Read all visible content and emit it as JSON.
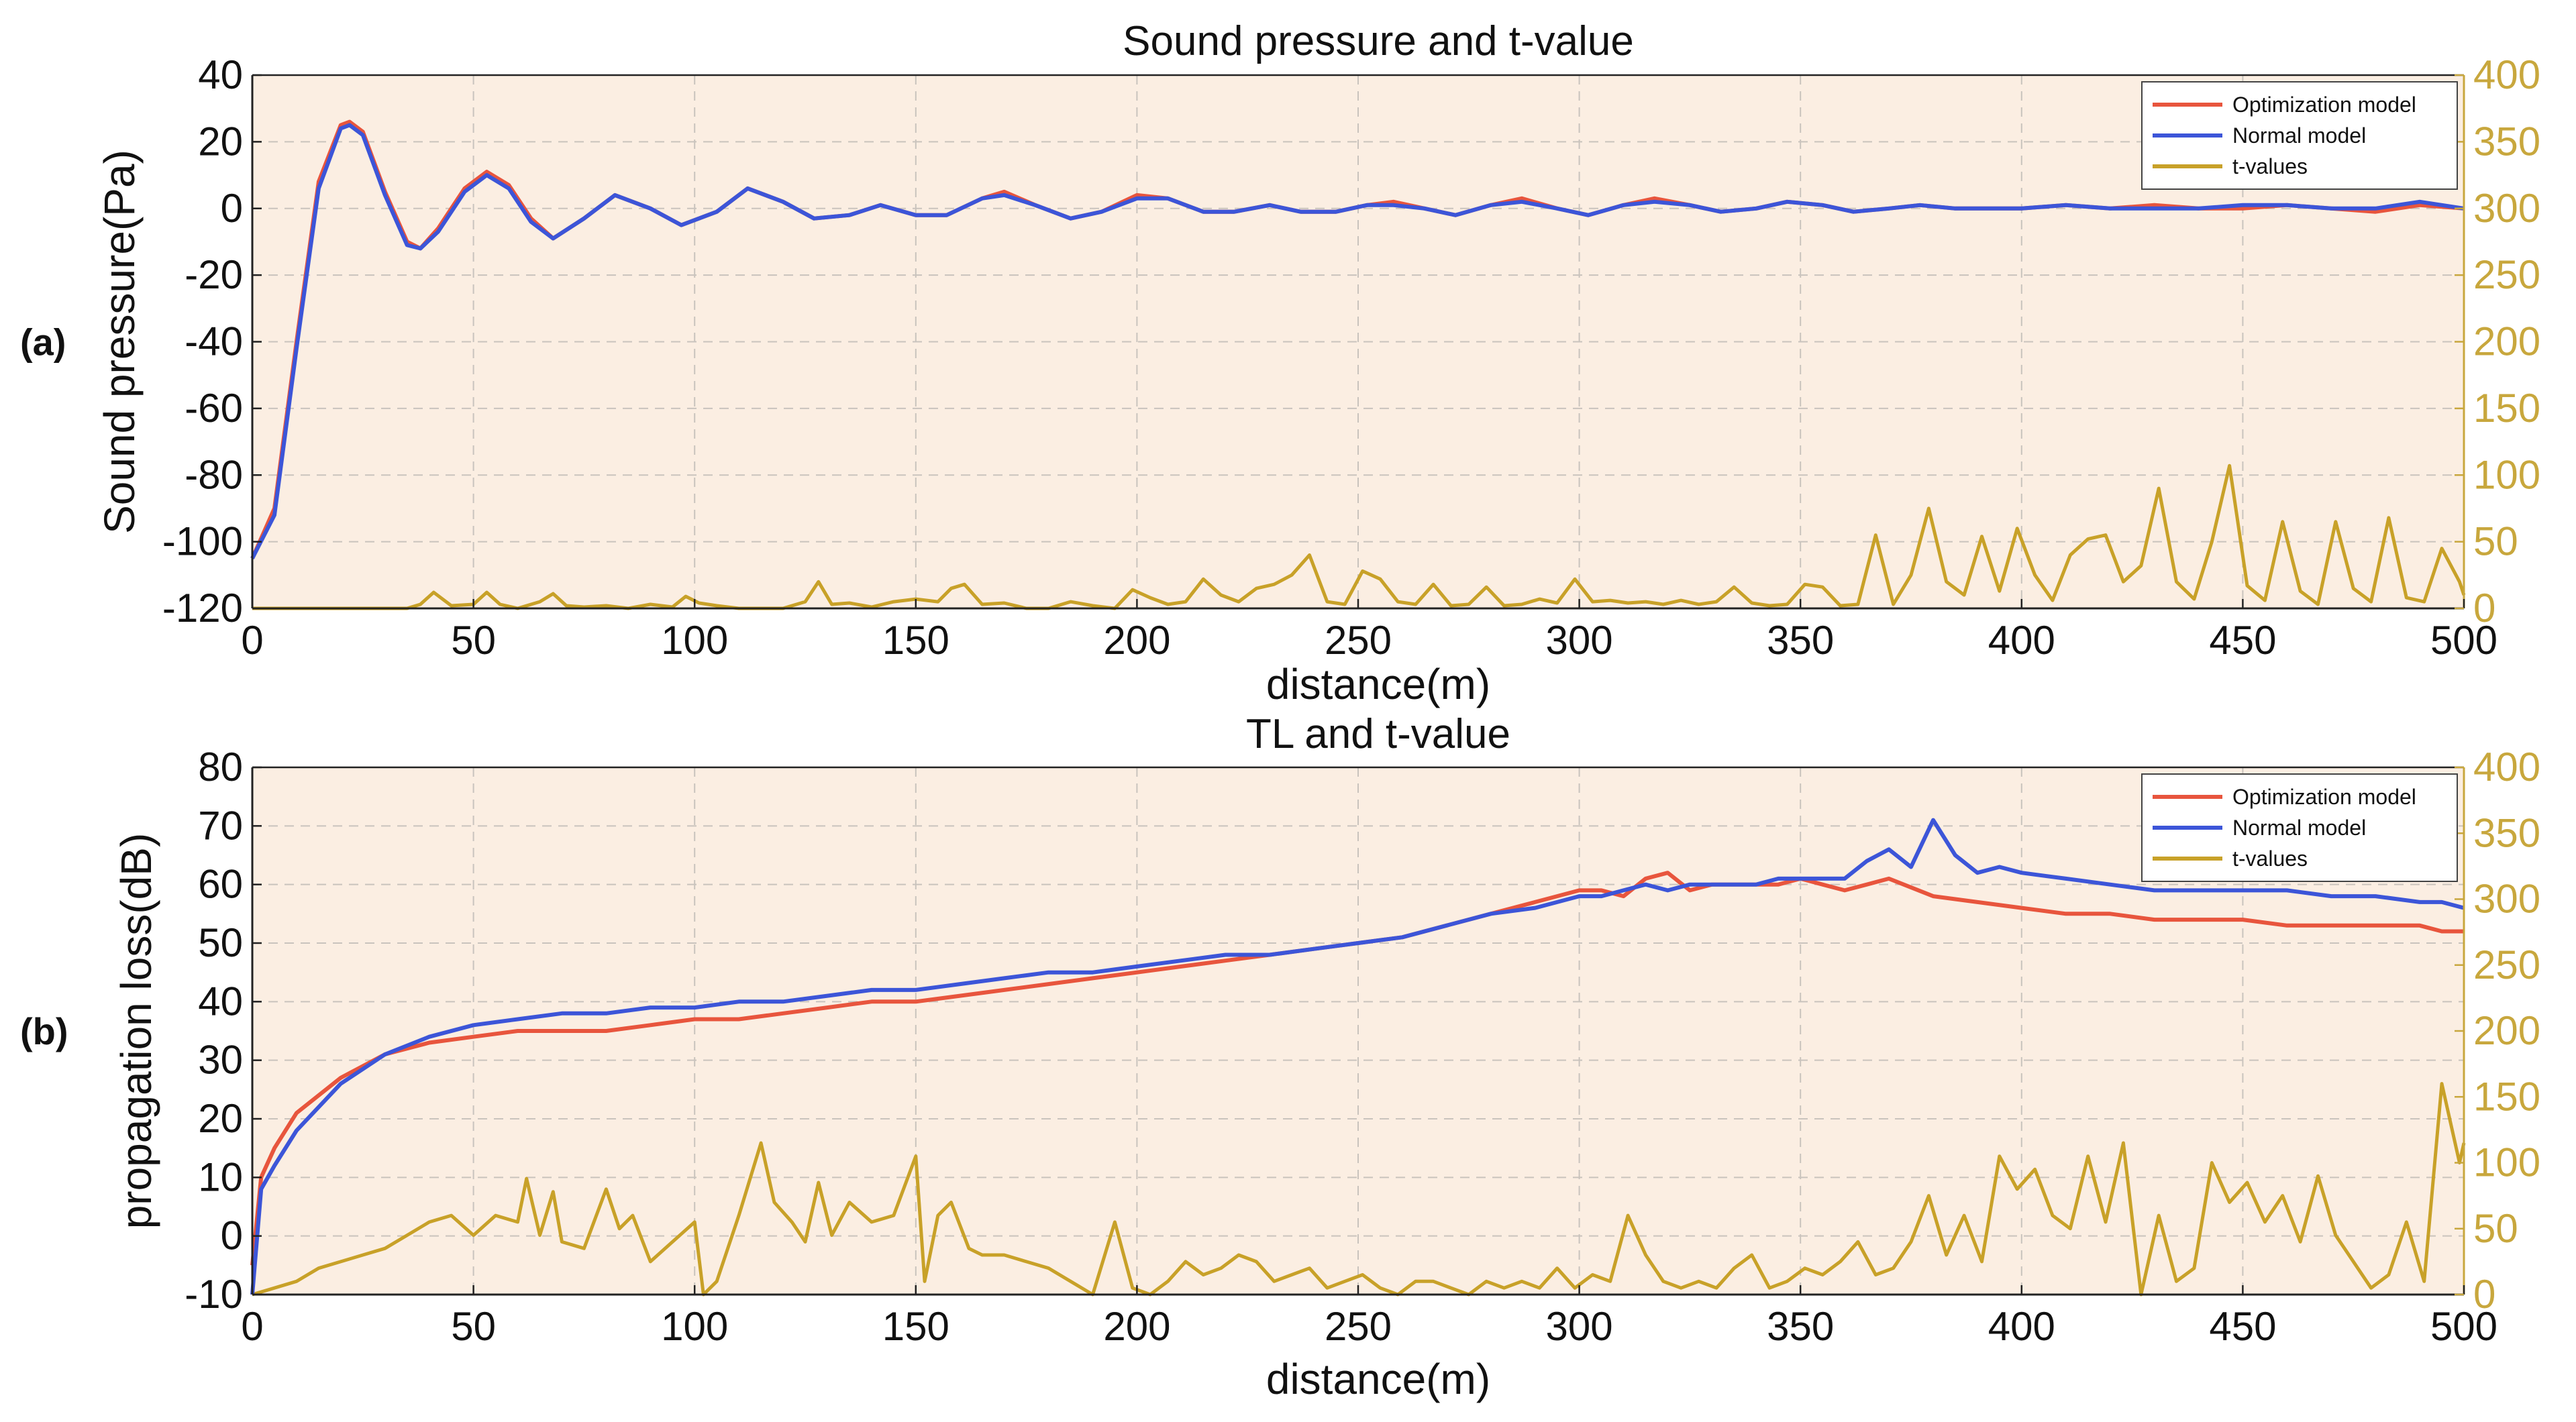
{
  "chart_data": [
    {
      "panel_label": "(a)",
      "type": "line",
      "title": "Sound pressure and t-value",
      "xlabel": "distance(m)",
      "ylabel": "Sound pressure(Pa)",
      "xlim": [
        0,
        500
      ],
      "ylim": [
        -120,
        40
      ],
      "y2lim": [
        0,
        400
      ],
      "xticks": [
        "0",
        "50",
        "100",
        "150",
        "200",
        "250",
        "300",
        "350",
        "400",
        "450",
        "500"
      ],
      "yticks": [
        "-120",
        "-100",
        "-80",
        "-60",
        "-40",
        "-20",
        "0",
        "20",
        "40"
      ],
      "y2ticks": [
        "0",
        "50",
        "100",
        "150",
        "200",
        "250",
        "300",
        "350",
        "400"
      ],
      "grid": true,
      "legend_position": "top-right",
      "colors": {
        "optimization": "#e8553d",
        "normal": "#3c55d8",
        "tvalues": "#c8a128",
        "background": "#fbeee2"
      },
      "series": [
        {
          "name": "Optimization model",
          "axis": "left",
          "color": "#e8553d",
          "x": [
            0,
            5,
            10,
            15,
            20,
            22,
            25,
            30,
            35,
            38,
            42,
            48,
            53,
            58,
            63,
            68,
            75,
            82,
            90,
            97,
            105,
            112,
            120,
            127,
            135,
            142,
            150,
            157,
            165,
            170,
            177,
            185,
            192,
            200,
            207,
            215,
            222,
            230,
            237,
            245,
            252,
            258,
            265,
            272,
            280,
            287,
            295,
            302,
            310,
            317,
            325,
            332,
            340,
            347,
            355,
            362,
            370,
            377,
            385,
            392,
            400,
            410,
            420,
            430,
            440,
            450,
            460,
            470,
            480,
            490,
            500
          ],
          "values": [
            -105,
            -90,
            -40,
            8,
            25,
            26,
            23,
            5,
            -10,
            -12,
            -6,
            6,
            11,
            7,
            -3,
            -9,
            -3,
            4,
            0,
            -5,
            -1,
            6,
            2,
            -3,
            -2,
            1,
            -2,
            -2,
            3,
            5,
            1,
            -3,
            -1,
            4,
            3,
            -1,
            -1,
            1,
            -1,
            -1,
            1,
            2,
            0,
            -2,
            1,
            3,
            0,
            -2,
            1,
            3,
            1,
            -1,
            0,
            2,
            1,
            -1,
            0,
            1,
            0,
            0,
            0,
            1,
            0,
            1,
            0,
            0,
            1,
            0,
            -1,
            1,
            0
          ]
        },
        {
          "name": "Normal model",
          "axis": "left",
          "color": "#3c55d8",
          "x": [
            0,
            5,
            10,
            15,
            20,
            22,
            25,
            30,
            35,
            38,
            42,
            48,
            53,
            58,
            63,
            68,
            75,
            82,
            90,
            97,
            105,
            112,
            120,
            127,
            135,
            142,
            150,
            157,
            165,
            170,
            177,
            185,
            192,
            200,
            207,
            215,
            222,
            230,
            237,
            245,
            252,
            258,
            265,
            272,
            280,
            287,
            295,
            302,
            310,
            317,
            325,
            332,
            340,
            347,
            355,
            362,
            370,
            377,
            385,
            392,
            400,
            410,
            420,
            430,
            440,
            450,
            460,
            470,
            480,
            490,
            500
          ],
          "values": [
            -105,
            -92,
            -42,
            6,
            24,
            25,
            22,
            4,
            -11,
            -12,
            -7,
            5,
            10,
            6,
            -4,
            -9,
            -3,
            4,
            0,
            -5,
            -1,
            6,
            2,
            -3,
            -2,
            1,
            -2,
            -2,
            3,
            4,
            1,
            -3,
            -1,
            3,
            3,
            -1,
            -1,
            1,
            -1,
            -1,
            1,
            1,
            0,
            -2,
            1,
            2,
            0,
            -2,
            1,
            2,
            1,
            -1,
            0,
            2,
            1,
            -1,
            0,
            1,
            0,
            0,
            0,
            1,
            0,
            0,
            0,
            1,
            1,
            0,
            0,
            2,
            0
          ]
        },
        {
          "name": "t-values",
          "axis": "right",
          "color": "#c8a128",
          "x": [
            0,
            10,
            20,
            30,
            35,
            38,
            41,
            45,
            50,
            53,
            56,
            60,
            65,
            68,
            71,
            75,
            80,
            85,
            90,
            95,
            98,
            101,
            105,
            110,
            115,
            120,
            125,
            128,
            131,
            135,
            140,
            145,
            150,
            155,
            158,
            161,
            165,
            170,
            175,
            180,
            185,
            190,
            195,
            199,
            203,
            207,
            211,
            215,
            219,
            223,
            227,
            231,
            235,
            239,
            243,
            247,
            251,
            255,
            259,
            263,
            267,
            271,
            275,
            279,
            283,
            287,
            291,
            295,
            299,
            303,
            307,
            311,
            315,
            319,
            323,
            327,
            331,
            335,
            339,
            343,
            347,
            351,
            355,
            359,
            363,
            367,
            371,
            375,
            379,
            383,
            387,
            391,
            395,
            399,
            403,
            407,
            411,
            415,
            419,
            423,
            427,
            431,
            435,
            439,
            443,
            447,
            451,
            455,
            459,
            463,
            467,
            471,
            475,
            479,
            483,
            487,
            491,
            495,
            499,
            500
          ],
          "values": [
            0,
            0,
            0,
            0,
            0,
            3,
            12,
            2,
            3,
            12,
            3,
            0,
            5,
            11,
            2,
            1,
            2,
            0,
            3,
            1,
            9,
            4,
            2,
            0,
            0,
            0,
            5,
            20,
            3,
            4,
            1,
            5,
            7,
            5,
            15,
            18,
            3,
            4,
            0,
            0,
            5,
            2,
            0,
            14,
            8,
            3,
            5,
            22,
            10,
            5,
            15,
            18,
            25,
            40,
            5,
            3,
            28,
            22,
            5,
            3,
            18,
            2,
            3,
            16,
            2,
            3,
            7,
            4,
            22,
            5,
            6,
            4,
            5,
            3,
            6,
            3,
            5,
            16,
            4,
            2,
            3,
            18,
            16,
            2,
            3,
            55,
            3,
            25,
            75,
            20,
            10,
            54,
            13,
            60,
            25,
            6,
            40,
            52,
            55,
            20,
            32,
            90,
            20,
            7,
            50,
            107,
            17,
            6,
            65,
            13,
            3,
            65,
            15,
            5,
            68,
            8,
            5,
            45,
            20,
            10
          ]
        }
      ]
    },
    {
      "panel_label": "(b)",
      "type": "line",
      "title": "TL and t-value",
      "xlabel": "distance(m)",
      "ylabel": "propagation loss(dB)",
      "xlim": [
        0,
        500
      ],
      "ylim": [
        -10,
        80
      ],
      "y2lim": [
        0,
        400
      ],
      "xticks": [
        "0",
        "50",
        "100",
        "150",
        "200",
        "250",
        "300",
        "350",
        "400",
        "450",
        "500"
      ],
      "yticks": [
        "-10",
        "0",
        "10",
        "20",
        "30",
        "40",
        "50",
        "60",
        "70",
        "80"
      ],
      "y2ticks": [
        "0",
        "50",
        "100",
        "150",
        "200",
        "250",
        "300",
        "350",
        "400"
      ],
      "grid": true,
      "legend_position": "top-right",
      "colors": {
        "optimization": "#e8553d",
        "normal": "#3c55d8",
        "tvalues": "#c8a128",
        "background": "#fbeee2"
      },
      "series": [
        {
          "name": "Optimization model",
          "axis": "left",
          "color": "#e8553d",
          "x": [
            0,
            2,
            5,
            10,
            20,
            30,
            40,
            50,
            60,
            70,
            80,
            90,
            100,
            110,
            120,
            130,
            140,
            150,
            160,
            170,
            180,
            190,
            200,
            210,
            220,
            230,
            240,
            250,
            260,
            270,
            280,
            290,
            300,
            305,
            310,
            315,
            320,
            325,
            330,
            335,
            340,
            345,
            350,
            355,
            360,
            365,
            370,
            380,
            390,
            400,
            410,
            420,
            430,
            440,
            450,
            460,
            470,
            480,
            490,
            495,
            500
          ],
          "values": [
            -5,
            10,
            15,
            21,
            27,
            31,
            33,
            34,
            35,
            35,
            35,
            36,
            37,
            37,
            38,
            39,
            40,
            40,
            41,
            42,
            43,
            44,
            45,
            46,
            47,
            48,
            49,
            50,
            51,
            53,
            55,
            57,
            59,
            59,
            58,
            61,
            62,
            59,
            60,
            60,
            60,
            60,
            61,
            60,
            59,
            60,
            61,
            58,
            57,
            56,
            55,
            55,
            54,
            54,
            54,
            53,
            53,
            53,
            53,
            52,
            52
          ]
        },
        {
          "name": "Normal model",
          "axis": "left",
          "color": "#3c55d8",
          "x": [
            0,
            2,
            5,
            10,
            20,
            30,
            40,
            50,
            60,
            70,
            80,
            90,
            100,
            110,
            120,
            130,
            140,
            150,
            160,
            170,
            180,
            190,
            200,
            210,
            220,
            230,
            240,
            250,
            260,
            270,
            280,
            290,
            300,
            305,
            310,
            315,
            320,
            325,
            330,
            335,
            340,
            345,
            350,
            355,
            360,
            365,
            370,
            375,
            380,
            385,
            390,
            395,
            400,
            410,
            420,
            430,
            440,
            450,
            460,
            470,
            480,
            490,
            495,
            500
          ],
          "values": [
            -10,
            8,
            12,
            18,
            26,
            31,
            34,
            36,
            37,
            38,
            38,
            39,
            39,
            40,
            40,
            41,
            42,
            42,
            43,
            44,
            45,
            45,
            46,
            47,
            48,
            48,
            49,
            50,
            51,
            53,
            55,
            56,
            58,
            58,
            59,
            60,
            59,
            60,
            60,
            60,
            60,
            61,
            61,
            61,
            61,
            64,
            66,
            63,
            71,
            65,
            62,
            63,
            62,
            61,
            60,
            59,
            59,
            59,
            59,
            58,
            58,
            57,
            57,
            56
          ]
        },
        {
          "name": "t-values",
          "axis": "right",
          "color": "#c8a128",
          "x": [
            0,
            5,
            10,
            15,
            20,
            25,
            30,
            35,
            40,
            45,
            50,
            55,
            60,
            62,
            65,
            68,
            70,
            75,
            80,
            83,
            86,
            90,
            95,
            100,
            102,
            105,
            110,
            115,
            118,
            122,
            125,
            128,
            131,
            135,
            140,
            145,
            150,
            152,
            155,
            158,
            162,
            165,
            170,
            175,
            180,
            185,
            190,
            195,
            199,
            203,
            207,
            211,
            215,
            219,
            223,
            227,
            231,
            235,
            239,
            243,
            247,
            251,
            255,
            259,
            263,
            267,
            271,
            275,
            279,
            283,
            287,
            291,
            295,
            299,
            303,
            307,
            311,
            315,
            319,
            323,
            327,
            331,
            335,
            339,
            343,
            347,
            351,
            355,
            359,
            363,
            367,
            371,
            375,
            379,
            383,
            387,
            391,
            395,
            399,
            403,
            407,
            411,
            415,
            419,
            423,
            427,
            431,
            435,
            439,
            443,
            447,
            451,
            455,
            459,
            463,
            467,
            471,
            475,
            479,
            483,
            487,
            491,
            495,
            499,
            500
          ],
          "values": [
            0,
            5,
            10,
            20,
            25,
            30,
            35,
            45,
            55,
            60,
            45,
            60,
            55,
            88,
            45,
            78,
            40,
            35,
            80,
            50,
            60,
            25,
            40,
            55,
            0,
            10,
            60,
            115,
            70,
            55,
            40,
            85,
            45,
            70,
            55,
            60,
            105,
            10,
            60,
            70,
            35,
            30,
            30,
            25,
            20,
            10,
            0,
            55,
            5,
            0,
            10,
            25,
            15,
            20,
            30,
            25,
            10,
            15,
            20,
            5,
            10,
            15,
            5,
            0,
            10,
            10,
            5,
            0,
            10,
            5,
            10,
            5,
            20,
            5,
            15,
            10,
            60,
            30,
            10,
            5,
            10,
            5,
            20,
            30,
            5,
            10,
            20,
            15,
            25,
            40,
            15,
            20,
            40,
            75,
            30,
            60,
            25,
            105,
            80,
            95,
            60,
            50,
            105,
            55,
            115,
            0,
            60,
            10,
            20,
            100,
            70,
            85,
            55,
            75,
            40,
            90,
            45,
            25,
            5,
            15,
            55,
            10,
            160,
            100,
            115
          ]
        }
      ]
    }
  ]
}
